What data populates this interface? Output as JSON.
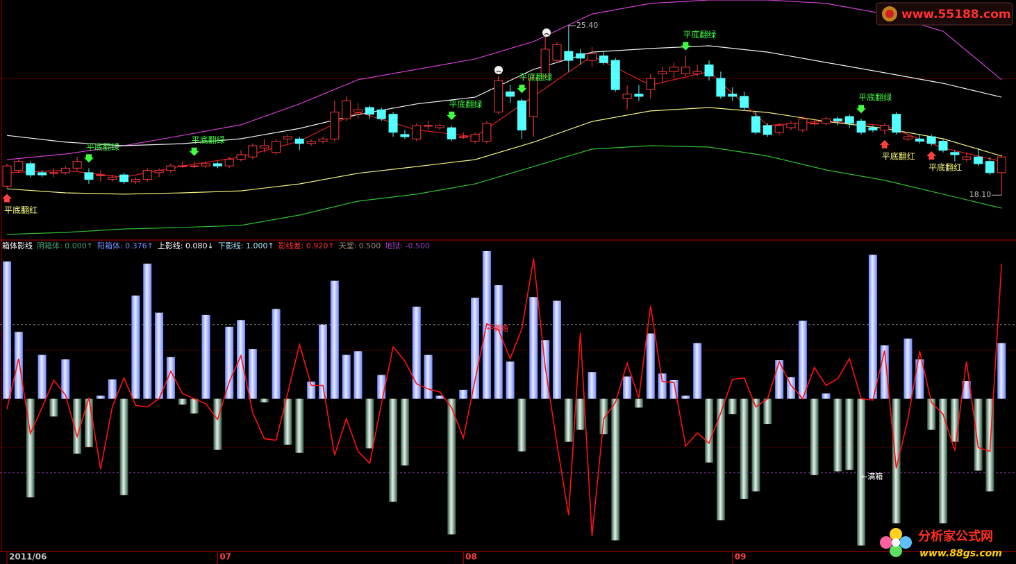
{
  "chart_data": [
    {
      "type": "candlestick",
      "xlim": [
        -0.5,
        85.5
      ],
      "ylim": [
        16.13,
        26.79
      ],
      "xticks": [
        {
          "value": 0,
          "label": "2011/06"
        },
        {
          "value": 18,
          "label": "07"
        },
        {
          "value": 39,
          "label": "08"
        },
        {
          "value": 62,
          "label": "09"
        }
      ],
      "up_color": "#ff3c3c",
      "down_color": "#54ffff",
      "candles": {
        "open": [
          18.5,
          19.2,
          19.5,
          19.1,
          19.1,
          19.1,
          19.3,
          19.1,
          19.0,
          18.8,
          19.0,
          18.7,
          18.8,
          19.1,
          19.2,
          19.4,
          19.4,
          19.4,
          19.5,
          19.4,
          19.7,
          19.8,
          20.2,
          20.0,
          20.6,
          20.6,
          20.4,
          20.5,
          20.6,
          21.5,
          21.8,
          22.0,
          21.9,
          21.7,
          20.8,
          20.6,
          21.2,
          21.1,
          21.1,
          20.7,
          20.5,
          20.5,
          21.8,
          22.7,
          22.3,
          21.6,
          23.4,
          24.1,
          24.5,
          24.4,
          24.1,
          24.3,
          24.1,
          22.4,
          22.6,
          22.8,
          23.5,
          23.6,
          23.5,
          23.5,
          23.9,
          23.3,
          22.6,
          22.5,
          21.6,
          21.2,
          20.9,
          21.1,
          21.0,
          21.3,
          21.3,
          21.5,
          21.6,
          21.4,
          21.1,
          21.0,
          21.7,
          20.6,
          20.6,
          20.7,
          20.5,
          20.0,
          19.7,
          19.8,
          19.6,
          19.1
        ],
        "close": [
          19.4,
          19.6,
          19.0,
          19.0,
          19.1,
          19.3,
          19.6,
          18.8,
          19.0,
          18.9,
          18.7,
          18.8,
          19.2,
          19.2,
          19.4,
          19.4,
          19.4,
          19.5,
          19.4,
          19.7,
          19.9,
          20.3,
          20.3,
          20.5,
          20.7,
          20.4,
          20.5,
          20.6,
          21.8,
          22.3,
          21.9,
          21.7,
          21.5,
          20.9,
          20.7,
          21.2,
          21.2,
          21.2,
          20.6,
          20.7,
          20.8,
          21.3,
          23.2,
          22.5,
          21.0,
          23.3,
          24.6,
          24.8,
          24.1,
          24.2,
          24.4,
          24.0,
          22.8,
          22.6,
          22.5,
          23.3,
          23.6,
          23.8,
          23.8,
          23.6,
          23.4,
          22.5,
          22.5,
          22.0,
          20.9,
          20.8,
          21.2,
          21.3,
          21.5,
          21.3,
          21.5,
          21.4,
          21.3,
          20.9,
          21.0,
          21.2,
          20.9,
          20.7,
          20.5,
          20.4,
          20.1,
          19.9,
          19.8,
          19.5,
          19.1,
          19.8
        ],
        "high": [
          19.5,
          19.7,
          19.6,
          19.2,
          19.3,
          19.4,
          19.8,
          19.3,
          19.2,
          19.0,
          19.1,
          18.9,
          19.3,
          19.3,
          19.5,
          19.6,
          19.6,
          19.6,
          19.6,
          19.8,
          20.1,
          20.4,
          20.6,
          20.6,
          20.8,
          20.7,
          20.6,
          20.7,
          22.3,
          22.5,
          22.2,
          22.1,
          22.0,
          21.8,
          21.0,
          21.3,
          21.4,
          21.3,
          21.2,
          20.9,
          20.9,
          21.4,
          23.4,
          23.0,
          22.4,
          23.5,
          25.2,
          24.9,
          25.4,
          24.6,
          24.7,
          24.5,
          24.2,
          23.0,
          23.0,
          23.5,
          23.8,
          24.0,
          24.3,
          23.9,
          24.1,
          23.6,
          22.9,
          22.7,
          21.8,
          21.3,
          21.3,
          21.4,
          21.6,
          21.5,
          21.6,
          21.6,
          21.7,
          21.5,
          21.2,
          21.3,
          21.8,
          20.8,
          20.8,
          20.8,
          20.6,
          20.1,
          20.0,
          20.2,
          19.8,
          19.9
        ],
        "low": [
          18.4,
          19.1,
          18.9,
          18.9,
          18.9,
          19.0,
          19.2,
          18.6,
          18.7,
          18.7,
          18.6,
          18.6,
          18.7,
          18.9,
          19.1,
          19.3,
          19.3,
          19.3,
          19.3,
          19.3,
          19.6,
          19.7,
          20.0,
          19.9,
          20.4,
          20.1,
          20.3,
          20.4,
          20.5,
          21.4,
          21.5,
          21.5,
          21.4,
          20.7,
          20.6,
          20.5,
          21.0,
          21.0,
          20.5,
          20.6,
          20.4,
          20.4,
          21.7,
          22.2,
          20.6,
          20.7,
          23.3,
          24.0,
          23.6,
          23.9,
          23.8,
          23.9,
          22.7,
          21.9,
          22.3,
          22.4,
          23.1,
          23.3,
          23.4,
          23.4,
          23.2,
          22.4,
          22.3,
          21.9,
          20.8,
          20.7,
          20.8,
          21.0,
          20.9,
          21.2,
          21.2,
          21.2,
          21.1,
          20.8,
          20.9,
          20.8,
          20.8,
          20.5,
          20.4,
          20.3,
          20.0,
          19.6,
          19.6,
          19.4,
          19.0,
          18.1
        ]
      },
      "lines": [
        {
          "color": "#d040d0",
          "x": [
            0,
            5,
            10,
            15,
            20,
            25,
            30,
            35,
            40,
            45,
            50,
            55,
            60,
            65,
            70,
            75,
            80,
            85
          ],
          "values": [
            19.68,
            19.93,
            20.3,
            20.76,
            21.23,
            22.16,
            23.24,
            23.7,
            24.16,
            24.94,
            26.17,
            26.64,
            26.79,
            26.79,
            26.64,
            26.17,
            25.4,
            23.24
          ]
        },
        {
          "color": "#f0f0f0",
          "x": [
            0,
            5,
            10,
            15,
            20,
            25,
            30,
            35,
            40,
            45,
            50,
            55,
            60,
            65,
            70,
            75,
            80,
            85
          ],
          "values": [
            20.76,
            20.46,
            20.3,
            20.39,
            20.61,
            21.07,
            21.69,
            22.16,
            22.46,
            23.7,
            24.47,
            24.63,
            24.75,
            24.47,
            24.01,
            23.55,
            23.08,
            22.46
          ]
        },
        {
          "color": "#f0f080",
          "x": [
            0,
            5,
            10,
            15,
            20,
            25,
            30,
            35,
            40,
            45,
            50,
            55,
            60,
            65,
            70,
            75,
            80,
            85
          ],
          "values": [
            18.38,
            18.2,
            18.14,
            18.2,
            18.29,
            18.6,
            19.07,
            19.37,
            19.68,
            20.46,
            21.38,
            21.85,
            22.0,
            21.78,
            21.38,
            21.07,
            20.61,
            19.84
          ]
        },
        {
          "color": "#30c030",
          "x": [
            0,
            5,
            10,
            15,
            20,
            25,
            30,
            35,
            40,
            45,
            50,
            55,
            60,
            65,
            70,
            75,
            80,
            85
          ],
          "values": [
            16.35,
            16.44,
            16.59,
            16.66,
            16.75,
            17.21,
            17.83,
            18.14,
            18.6,
            19.37,
            20.15,
            20.3,
            20.24,
            19.84,
            19.22,
            18.76,
            18.14,
            17.52
          ]
        },
        {
          "color": "#e02020",
          "x": [
            0,
            5,
            10,
            15,
            20,
            25,
            30,
            35,
            40,
            45,
            50,
            55,
            60,
            65,
            70,
            75,
            80,
            85
          ],
          "values": [
            19.1,
            19.2,
            18.9,
            19.4,
            19.8,
            20.5,
            21.8,
            21.0,
            20.7,
            22.5,
            24.3,
            23.0,
            23.6,
            21.2,
            21.4,
            21.2,
            20.2,
            19.6
          ]
        }
      ],
      "signals": [
        {
          "label": "平底翻红",
          "x": 0,
          "arrow": "up",
          "color": "#ffff80",
          "arrow_color": "#ff4040"
        },
        {
          "label": "平底翻绿",
          "x": 7,
          "arrow": "down",
          "color": "#40ff40",
          "arrow_color": "#40ff40"
        },
        {
          "label": "平底翻绿",
          "x": 16,
          "arrow": "down",
          "color": "#40ff40",
          "arrow_color": "#40ff40"
        },
        {
          "label": "平底翻绿",
          "x": 38,
          "arrow": "down",
          "color": "#40ff40",
          "arrow_color": "#40ff40"
        },
        {
          "label": "平底翻绿",
          "x": 44,
          "arrow": "down",
          "color": "#40ff40",
          "arrow_color": "#40ff40"
        },
        {
          "label": "平底翻绿",
          "x": 58,
          "arrow": "down",
          "color": "#40ff40",
          "arrow_color": "#40ff40"
        },
        {
          "label": "平底翻绿",
          "x": 73,
          "arrow": "down",
          "color": "#40ff40",
          "arrow_color": "#40ff40"
        },
        {
          "label": "平底翻红",
          "x": 75,
          "arrow": "up",
          "color": "#ffff80",
          "arrow_color": "#ff4040"
        },
        {
          "label": "平底翻红",
          "x": 79,
          "arrow": "up",
          "color": "#ffff80",
          "arrow_color": "#ff4040"
        }
      ],
      "high_label": {
        "x": 48,
        "value": 25.4,
        "label": "25.40"
      },
      "low_label": {
        "x": 85,
        "value": 18.1,
        "label": "18.10"
      }
    },
    {
      "type": "bar",
      "xlim": [
        -0.5,
        85.5
      ],
      "ylim": [
        -2.06,
        2.12
      ],
      "values": [
        1.85,
        0.9,
        -1.33,
        0.59,
        -0.24,
        0.53,
        -0.74,
        -0.65,
        0.04,
        0.26,
        -1.3,
        1.39,
        1.82,
        1.16,
        0.56,
        -0.08,
        -0.2,
        1.13,
        -0.69,
        0.97,
        1.06,
        0.67,
        -0.05,
        1.21,
        -0.62,
        -0.73,
        0.23,
        1.0,
        1.59,
        0.59,
        0.64,
        -0.67,
        0.32,
        -1.39,
        -0.9,
        1.24,
        0.59,
        0.04,
        -1.83,
        0.12,
        1.36,
        1.99,
        1.53,
        0.5,
        -0.71,
        1.37,
        0.79,
        1.32,
        -0.58,
        -0.42,
        0.36,
        -0.48,
        -1.91,
        0.3,
        -0.12,
        0.88,
        0.34,
        0.25,
        0.04,
        0.75,
        -0.86,
        -1.64,
        -0.21,
        -1.35,
        -1.25,
        -0.34,
        0.52,
        0.29,
        1.05,
        -1.03,
        0.07,
        -0.98,
        -0.96,
        -1.98,
        1.94,
        0.72,
        -1.68,
        0.81,
        0.53,
        -0.42,
        -1.68,
        -0.58,
        0.24,
        -0.97,
        -1.25,
        0.75
      ],
      "line": {
        "color": "#ff1010",
        "values": [
          -0.14,
          0.54,
          -0.47,
          -0.12,
          0.25,
          0.05,
          -0.51,
          0.01,
          -0.95,
          -0.11,
          0.28,
          -0.09,
          -0.11,
          0.0,
          0.37,
          0.07,
          0.0,
          -0.07,
          -0.28,
          0.23,
          0.58,
          -0.19,
          -0.54,
          -0.56,
          0.08,
          0.73,
          0.18,
          0.18,
          -0.76,
          -0.27,
          -0.71,
          -0.87,
          -0.07,
          0.7,
          0.51,
          0.2,
          0.13,
          0.09,
          -0.12,
          -0.53,
          0.25,
          1.01,
          0.93,
          0.54,
          0.94,
          1.89,
          0.43,
          -0.61,
          -1.57,
          0.89,
          -1.85,
          -0.27,
          -0.05,
          0.48,
          0.01,
          1.25,
          0.23,
          0.22,
          -0.64,
          -0.46,
          -0.6,
          -0.19,
          0.26,
          0.28,
          -0.11,
          0.0,
          0.5,
          0.18,
          0.0,
          0.42,
          0.18,
          0.27,
          0.54,
          0.0,
          -0.02,
          0.65,
          -0.94,
          -0.27,
          0.64,
          -0.05,
          -0.21,
          -0.7,
          0.5,
          -0.66,
          -0.71,
          1.82
        ]
      },
      "reference_lines": [
        {
          "value": 1,
          "label": "←满箱",
          "x": 41,
          "color": "#ff3030",
          "line_color": "#909090"
        },
        {
          "value": -1,
          "label": "←满箱",
          "x": 73,
          "color": "#ffffff",
          "line_color": "#a040c0"
        }
      ],
      "legend": [
        {
          "text": "箱体影线",
          "color": "#ffffff"
        },
        {
          "text": "阴箱体: 0.000↑",
          "color": "#40a070"
        },
        {
          "text": "阳箱体: 0.376↑",
          "color": "#7090ff"
        },
        {
          "text": "上影线: 0.080↓",
          "color": "#ffffff"
        },
        {
          "text": "下影线: 1.000↑",
          "color": "#b0e8ff"
        },
        {
          "text": "影线差: 0.920↑",
          "color": "#ff3030"
        },
        {
          "text": "天堂: 0.500",
          "color": "#a08878"
        },
        {
          "text": "地狱: -0.500",
          "color": "#a040c0"
        }
      ]
    }
  ],
  "watermarks": {
    "top": "www.55188.com",
    "bottom_title": "分析家公式网",
    "bottom_url": "www.88gs.com"
  }
}
